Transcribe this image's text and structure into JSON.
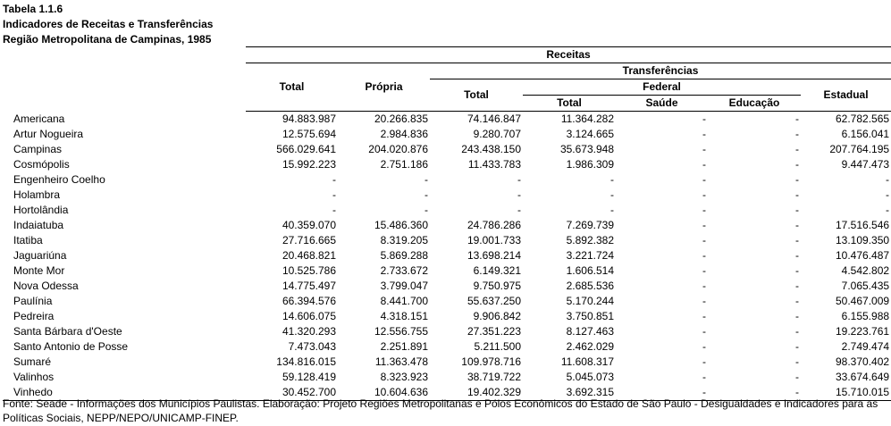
{
  "title": {
    "line1": "Tabela 1.1.6",
    "line2": "Indicadores de Receitas e Transferências",
    "line3": "Região Metropolitana de Campinas, 1985"
  },
  "headers": {
    "receitas": "Receitas",
    "transferencias": "Transferências",
    "total": "Total",
    "propria": "Própria",
    "transf_total": "Total",
    "federal": "Federal",
    "federal_total": "Total",
    "saude": "Saúde",
    "educacao": "Educação",
    "estadual": "Estadual"
  },
  "rows": [
    [
      "Americana",
      "94.883.987",
      "20.266.835",
      "74.146.847",
      "11.364.282",
      "-",
      "-",
      "62.782.565"
    ],
    [
      "Artur Nogueira",
      "12.575.694",
      "2.984.836",
      "9.280.707",
      "3.124.665",
      "-",
      "-",
      "6.156.041"
    ],
    [
      "Campinas",
      "566.029.641",
      "204.020.876",
      "243.438.150",
      "35.673.948",
      "-",
      "-",
      "207.764.195"
    ],
    [
      "Cosmópolis",
      "15.992.223",
      "2.751.186",
      "11.433.783",
      "1.986.309",
      "-",
      "-",
      "9.447.473"
    ],
    [
      "Engenheiro Coelho",
      "-",
      "-",
      "-",
      "-",
      "-",
      "-",
      "-"
    ],
    [
      "Holambra",
      "-",
      "-",
      "-",
      "-",
      "-",
      "-",
      "-"
    ],
    [
      "Hortolândia",
      "-",
      "-",
      "-",
      "-",
      "-",
      "-",
      "-"
    ],
    [
      "Indaiatuba",
      "40.359.070",
      "15.486.360",
      "24.786.286",
      "7.269.739",
      "-",
      "-",
      "17.516.546"
    ],
    [
      "Itatiba",
      "27.716.665",
      "8.319.205",
      "19.001.733",
      "5.892.382",
      "-",
      "-",
      "13.109.350"
    ],
    [
      "Jaguariúna",
      "20.468.821",
      "5.869.288",
      "13.698.214",
      "3.221.724",
      "-",
      "-",
      "10.476.487"
    ],
    [
      "Monte Mor",
      "10.525.786",
      "2.733.672",
      "6.149.321",
      "1.606.514",
      "-",
      "-",
      "4.542.802"
    ],
    [
      "Nova Odessa",
      "14.775.497",
      "3.799.047",
      "9.750.975",
      "2.685.536",
      "-",
      "-",
      "7.065.435"
    ],
    [
      "Paulínia",
      "66.394.576",
      "8.441.700",
      "55.637.250",
      "5.170.244",
      "-",
      "-",
      "50.467.009"
    ],
    [
      "Pedreira",
      "14.606.075",
      "4.318.151",
      "9.906.842",
      "3.750.851",
      "-",
      "-",
      "6.155.988"
    ],
    [
      "Santa Bárbara d'Oeste",
      "41.320.293",
      "12.556.755",
      "27.351.223",
      "8.127.463",
      "-",
      "-",
      "19.223.761"
    ],
    [
      "Santo Antonio de Posse",
      "7.473.043",
      "2.251.891",
      "5.211.500",
      "2.462.029",
      "-",
      "-",
      "2.749.474"
    ],
    [
      "Sumaré",
      "134.816.015",
      "11.363.478",
      "109.978.716",
      "11.608.317",
      "-",
      "-",
      "98.370.402"
    ],
    [
      "Valinhos",
      "59.128.419",
      "8.323.923",
      "38.719.722",
      "5.045.073",
      "-",
      "-",
      "33.674.649"
    ],
    [
      "Vinhedo",
      "30.452.700",
      "10.604.636",
      "19.402.329",
      "3.692.315",
      "-",
      "-",
      "15.710.015"
    ]
  ],
  "source": "Fonte: Seade - Informações dos Municípios Paulistas. Elaboração: Projeto Regiões Metropolitanas e Pólos Econômicos do Estado de São Paulo - Desigualdades e Indicadores para as Políticas Sociais, NEPP/NEPO/UNICAMP-FINEP."
}
